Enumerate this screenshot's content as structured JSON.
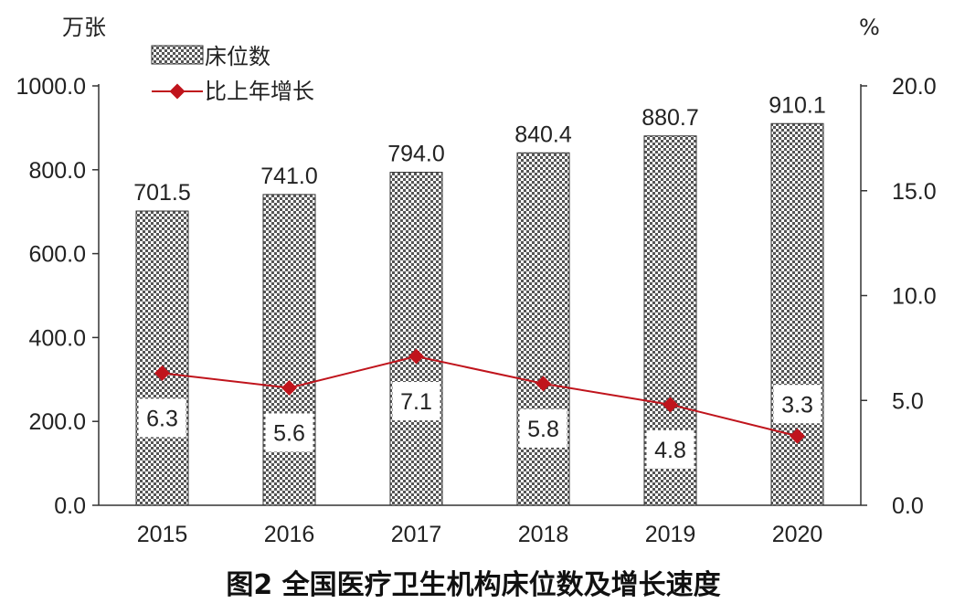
{
  "chart_data": {
    "type": "bar",
    "title": "图2 全国医疗卫生机构床位数及增长速度",
    "categories": [
      "2015",
      "2016",
      "2017",
      "2018",
      "2019",
      "2020"
    ],
    "series": [
      {
        "name": "床位数",
        "type": "bar",
        "axis": "left",
        "values": [
          701.5,
          741.0,
          794.0,
          840.4,
          880.7,
          910.1
        ],
        "value_labels": [
          "701.5",
          "741.0",
          "794.0",
          "840.4",
          "880.7",
          "910.1"
        ],
        "color": "#555555"
      },
      {
        "name": "比上年增长",
        "type": "line",
        "axis": "right",
        "values": [
          6.3,
          5.6,
          7.1,
          5.8,
          4.8,
          3.3
        ],
        "value_labels": [
          "6.3",
          "5.6",
          "7.1",
          "5.8",
          "4.8",
          "3.3"
        ],
        "color": "#c0141c"
      }
    ],
    "y_left": {
      "unit": "万张",
      "ylim": [
        0,
        1000
      ],
      "ticks": [
        0,
        200,
        400,
        600,
        800,
        1000
      ],
      "tick_labels": [
        "0.0",
        "200.0",
        "400.0",
        "600.0",
        "800.0",
        "1000.0"
      ]
    },
    "y_right": {
      "unit": "%",
      "ylim": [
        0,
        20
      ],
      "ticks": [
        0,
        5,
        10,
        15,
        20
      ],
      "tick_labels": [
        "0.0",
        "5.0",
        "10.0",
        "15.0",
        "20.0"
      ]
    },
    "grid": false,
    "legend_position": "top-left"
  }
}
